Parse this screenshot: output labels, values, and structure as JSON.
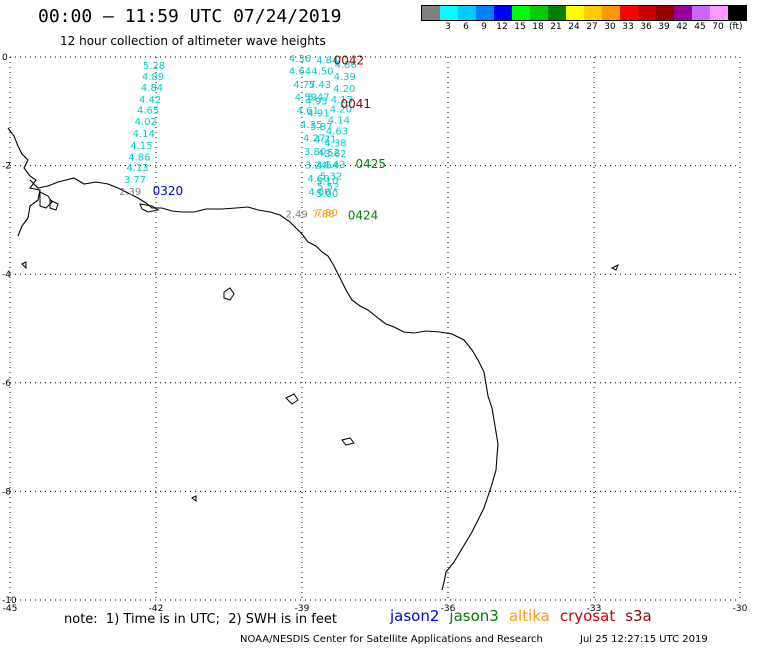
{
  "header": {
    "title": "00:00 – 11:59 UTC 07/24/2019",
    "subtitle": "12 hour collection of altimeter wave heights"
  },
  "colorbar": {
    "unit": "(ft)",
    "items": [
      {
        "label": "",
        "color": "#808080"
      },
      {
        "label": "3",
        "color": "#00ffff"
      },
      {
        "label": "6",
        "color": "#00ccff"
      },
      {
        "label": "9",
        "color": "#0080ff"
      },
      {
        "label": "12",
        "color": "#0000ff"
      },
      {
        "label": "15",
        "color": "#00ff00"
      },
      {
        "label": "18",
        "color": "#00cc00"
      },
      {
        "label": "21",
        "color": "#008000"
      },
      {
        "label": "24",
        "color": "#ffff00"
      },
      {
        "label": "27",
        "color": "#ffcc00"
      },
      {
        "label": "30",
        "color": "#ff9900"
      },
      {
        "label": "33",
        "color": "#ff0000"
      },
      {
        "label": "36",
        "color": "#cc0000"
      },
      {
        "label": "39",
        "color": "#990000"
      },
      {
        "label": "42",
        "color": "#990099"
      },
      {
        "label": "45",
        "color": "#cc66ff"
      },
      {
        "label": "70",
        "color": "#ff99ff"
      },
      {
        "label": "",
        "color": "#000000"
      }
    ]
  },
  "axes": {
    "x_ticks": [
      "-45",
      "-42",
      "-39",
      "-36",
      "-33",
      "-30"
    ],
    "y_ticks": [
      "0",
      "-2",
      "-4",
      "-6",
      "-8",
      "-10"
    ]
  },
  "passes": [
    {
      "label": "0042",
      "color": "#8b0000"
    },
    {
      "label": "0041",
      "color": "#8b0000"
    },
    {
      "label": "0425",
      "color": "#008000"
    },
    {
      "label": "0424",
      "color": "#008000"
    },
    {
      "label": "0320",
      "color": "#0000cc"
    }
  ],
  "track_values": [
    {
      "text": "4.36",
      "lon": -39.27,
      "lat": -0.02,
      "color": "#00cccc"
    },
    {
      "text": "4.84",
      "lon": -38.71,
      "lat": -0.05,
      "color": "#00cccc"
    },
    {
      "text": "4.64",
      "lon": -39.27,
      "lat": -0.25,
      "color": "#00cccc"
    },
    {
      "text": "4.50",
      "lon": -38.81,
      "lat": -0.25,
      "color": "#00cccc"
    },
    {
      "text": "4.77",
      "lon": -39.18,
      "lat": -0.5,
      "color": "#00cccc"
    },
    {
      "text": "5.43",
      "lon": -38.86,
      "lat": -0.5,
      "color": "#00cccc"
    },
    {
      "text": "4.59",
      "lon": -39.15,
      "lat": -0.73,
      "color": "#00cccc"
    },
    {
      "text": "5.47",
      "lon": -38.89,
      "lat": -0.73,
      "color": "#00cccc"
    },
    {
      "text": "4.95",
      "lon": -38.93,
      "lat": -0.8,
      "color": "#00cccc"
    },
    {
      "text": "4.61",
      "lon": -39.11,
      "lat": -0.98,
      "color": "#00cccc"
    },
    {
      "text": "4.91",
      "lon": -38.89,
      "lat": -1.02,
      "color": "#00cccc"
    },
    {
      "text": "4.35",
      "lon": -39.04,
      "lat": -1.23,
      "color": "#00cccc"
    },
    {
      "text": "5.87",
      "lon": -38.83,
      "lat": -1.27,
      "color": "#00cccc"
    },
    {
      "text": "4.27",
      "lon": -38.98,
      "lat": -1.48,
      "color": "#00cccc"
    },
    {
      "text": "4.21",
      "lon": -38.75,
      "lat": -1.5,
      "color": "#00cccc"
    },
    {
      "text": "3.80",
      "lon": -38.96,
      "lat": -1.73,
      "color": "#00cccc"
    },
    {
      "text": "4.52",
      "lon": -38.68,
      "lat": -1.75,
      "color": "#00cccc"
    },
    {
      "text": "3.24",
      "lon": -38.94,
      "lat": -1.98,
      "color": "#00cccc"
    },
    {
      "text": "4.54",
      "lon": -38.71,
      "lat": -1.98,
      "color": "#00cccc"
    },
    {
      "text": "4.60",
      "lon": -38.89,
      "lat": -2.23,
      "color": "#00cccc"
    },
    {
      "text": "5.10",
      "lon": -38.71,
      "lat": -2.27,
      "color": "#00cccc"
    },
    {
      "text": "4.06",
      "lon": -38.87,
      "lat": -2.48,
      "color": "#00cccc"
    },
    {
      "text": "5.00",
      "lon": -38.71,
      "lat": -2.5,
      "color": "#00cccc"
    },
    {
      "text": "4.86",
      "lon": -38.33,
      "lat": -0.13,
      "color": "#00cccc"
    },
    {
      "text": "4.39",
      "lon": -38.35,
      "lat": -0.35,
      "color": "#00cccc"
    },
    {
      "text": "4.20",
      "lon": -38.36,
      "lat": -0.57,
      "color": "#00cccc"
    },
    {
      "text": "4.13",
      "lon": -38.41,
      "lat": -0.77,
      "color": "#00cccc"
    },
    {
      "text": "4.20",
      "lon": -38.43,
      "lat": -0.95,
      "color": "#00cccc"
    },
    {
      "text": "4.14",
      "lon": -38.47,
      "lat": -1.15,
      "color": "#00cccc"
    },
    {
      "text": "4.63",
      "lon": -38.51,
      "lat": -1.35,
      "color": "#00cccc"
    },
    {
      "text": "4.38",
      "lon": -38.54,
      "lat": -1.57,
      "color": "#00cccc"
    },
    {
      "text": "3.62",
      "lon": -38.54,
      "lat": -1.77,
      "color": "#00cccc"
    },
    {
      "text": "4.43",
      "lon": -38.56,
      "lat": -1.97,
      "color": "#00cccc"
    },
    {
      "text": "5.32",
      "lon": -38.63,
      "lat": -2.18,
      "color": "#00cccc"
    },
    {
      "text": "5.52",
      "lon": -38.69,
      "lat": -2.38,
      "color": "#00cccc"
    },
    {
      "text": "5.28",
      "lon": -42.27,
      "lat": -0.15,
      "color": "#00cccc"
    },
    {
      "text": "4.89",
      "lon": -42.29,
      "lat": -0.35,
      "color": "#00cccc"
    },
    {
      "text": "4.84",
      "lon": -42.31,
      "lat": -0.55,
      "color": "#00cccc"
    },
    {
      "text": "4.42",
      "lon": -42.35,
      "lat": -0.77,
      "color": "#00cccc"
    },
    {
      "text": "4.65",
      "lon": -42.39,
      "lat": -0.97,
      "color": "#00cccc"
    },
    {
      "text": "4.02",
      "lon": -42.44,
      "lat": -1.18,
      "color": "#00cccc"
    },
    {
      "text": "4.14",
      "lon": -42.48,
      "lat": -1.4,
      "color": "#00cccc"
    },
    {
      "text": "4.15",
      "lon": -42.53,
      "lat": -1.62,
      "color": "#00cccc"
    },
    {
      "text": "4.86",
      "lon": -42.57,
      "lat": -1.83,
      "color": "#00cccc"
    },
    {
      "text": "4.13",
      "lon": -42.61,
      "lat": -2.03,
      "color": "#00cccc"
    },
    {
      "text": "3.77",
      "lon": -42.66,
      "lat": -2.25,
      "color": "#00cccc"
    },
    {
      "text": "2.39",
      "lon": -42.76,
      "lat": -2.47,
      "color": "#808080"
    },
    {
      "text": "2.49",
      "lon": -39.34,
      "lat": -2.88,
      "color": "#808080"
    },
    {
      "text": "7.88",
      "lon": -38.79,
      "lat": -2.88,
      "color": "#ff9900"
    },
    {
      "text": "7.80",
      "lon": -38.72,
      "lat": -2.85,
      "color": "#ff9900"
    }
  ],
  "pass_positions": [
    {
      "lon": -38.35,
      "lat": -0.05
    },
    {
      "lon": -38.21,
      "lat": -0.85
    },
    {
      "lon": -37.9,
      "lat": -1.95
    },
    {
      "lon": -38.06,
      "lat": -2.9
    },
    {
      "lon": -42.07,
      "lat": -2.45
    }
  ],
  "note": "note:  1) Time is in UTC;  2) SWH is in feet",
  "legend": [
    {
      "name": "jason2",
      "color": "#0000cc"
    },
    {
      "name": "jason3",
      "color": "#008000"
    },
    {
      "name": "altika",
      "color": "#ff9900"
    },
    {
      "name": "cryosat",
      "color": "#cc0000"
    },
    {
      "name": "s3a",
      "color": "#990000"
    }
  ],
  "footer": {
    "credit": "NOAA/NESDIS Center for Satellite Applications and Research",
    "timestamp": "Jul 25 12:27:15 UTC 2019"
  }
}
